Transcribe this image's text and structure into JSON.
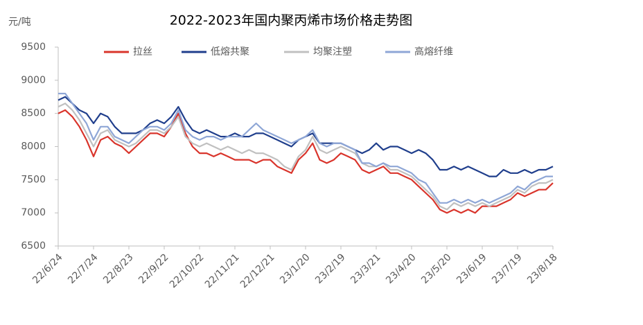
{
  "chart_data": {
    "type": "line",
    "title": "2022-2023年国内聚丙烯市场价格走势图",
    "ylabel": "元/吨",
    "categories": [
      "22/6/24",
      null,
      null,
      null,
      null,
      "22/7/24",
      null,
      null,
      null,
      null,
      "22/8/23",
      null,
      null,
      null,
      null,
      "22/9/22",
      null,
      null,
      null,
      null,
      "22/10/22",
      null,
      null,
      null,
      null,
      "22/11/21",
      null,
      null,
      null,
      null,
      "22/12/21",
      null,
      null,
      null,
      null,
      "23/1/20",
      null,
      null,
      null,
      null,
      "23/2/19",
      null,
      null,
      null,
      null,
      "23/3/21",
      null,
      null,
      null,
      null,
      "23/4/20",
      null,
      null,
      null,
      null,
      "23/5/20",
      null,
      null,
      null,
      null,
      "23/6/19",
      null,
      null,
      null,
      null,
      "23/7/19",
      null,
      null,
      null,
      null,
      "23/8/18"
    ],
    "series": [
      {
        "name": "拉丝",
        "color": "#d9342b",
        "values": [
          8500,
          8550,
          8450,
          8300,
          8100,
          7850,
          8100,
          8150,
          8050,
          8000,
          7900,
          8000,
          8100,
          8200,
          8200,
          8150,
          8300,
          8500,
          8200,
          8000,
          7900,
          7900,
          7850,
          7900,
          7850,
          7800,
          7800,
          7800,
          7750,
          7800,
          7800,
          7700,
          7650,
          7600,
          7800,
          7900,
          8050,
          7800,
          7750,
          7800,
          7900,
          7850,
          7800,
          7650,
          7600,
          7650,
          7700,
          7600,
          7600,
          7550,
          7500,
          7400,
          7300,
          7200,
          7050,
          7000,
          7050,
          7000,
          7050,
          7000,
          7100,
          7100,
          7100,
          7150,
          7200,
          7300,
          7250,
          7300,
          7350,
          7350,
          7450
        ]
      },
      {
        "name": "低熔共聚",
        "color": "#1f3e8c",
        "values": [
          8700,
          8750,
          8650,
          8550,
          8500,
          8350,
          8500,
          8450,
          8300,
          8200,
          8200,
          8200,
          8250,
          8350,
          8400,
          8350,
          8450,
          8600,
          8400,
          8250,
          8200,
          8250,
          8200,
          8150,
          8150,
          8200,
          8150,
          8150,
          8200,
          8200,
          8150,
          8100,
          8050,
          8000,
          8100,
          8150,
          8200,
          8050,
          8050,
          8050,
          8050,
          8000,
          7950,
          7900,
          7950,
          8050,
          7950,
          8000,
          8000,
          7950,
          7900,
          7950,
          7900,
          7800,
          7650,
          7650,
          7700,
          7650,
          7700,
          7650,
          7600,
          7550,
          7550,
          7650,
          7600,
          7600,
          7650,
          7600,
          7650,
          7650,
          7700
        ]
      },
      {
        "name": "均聚注塑",
        "color": "#c0c0c0",
        "values": [
          8600,
          8650,
          8550,
          8400,
          8200,
          8000,
          8200,
          8250,
          8100,
          8050,
          8000,
          8050,
          8150,
          8250,
          8250,
          8200,
          8300,
          8450,
          8150,
          8050,
          8000,
          8050,
          8000,
          7950,
          8000,
          7950,
          7900,
          7950,
          7900,
          7900,
          7850,
          7800,
          7700,
          7650,
          7850,
          7950,
          8150,
          7950,
          7900,
          7950,
          8000,
          7950,
          7900,
          7750,
          7700,
          7700,
          7750,
          7650,
          7650,
          7600,
          7550,
          7450,
          7350,
          7250,
          7100,
          7050,
          7150,
          7100,
          7150,
          7100,
          7150,
          7100,
          7150,
          7200,
          7250,
          7350,
          7300,
          7400,
          7450,
          7450,
          7500
        ]
      },
      {
        "name": "高熔纤维",
        "color": "#8ea6d6",
        "values": [
          8800,
          8800,
          8650,
          8500,
          8350,
          8100,
          8300,
          8300,
          8150,
          8100,
          8050,
          8150,
          8250,
          8300,
          8300,
          8250,
          8350,
          8550,
          8250,
          8150,
          8100,
          8150,
          8150,
          8100,
          8150,
          8150,
          8150,
          8250,
          8350,
          8250,
          8200,
          8150,
          8100,
          8050,
          8100,
          8150,
          8250,
          8050,
          8000,
          8050,
          8050,
          8000,
          7950,
          7750,
          7750,
          7700,
          7750,
          7700,
          7700,
          7650,
          7600,
          7500,
          7450,
          7300,
          7150,
          7150,
          7200,
          7150,
          7200,
          7150,
          7200,
          7150,
          7200,
          7250,
          7300,
          7400,
          7350,
          7450,
          7500,
          7550,
          7550
        ]
      }
    ],
    "ylim": [
      6500,
      9500
    ],
    "yticks": [
      6500,
      7000,
      7500,
      8000,
      8500,
      9000,
      9500
    ],
    "grid": false,
    "legend": "top"
  }
}
